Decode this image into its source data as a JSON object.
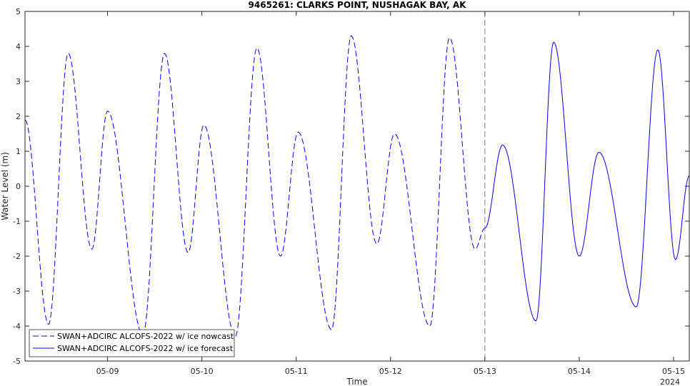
{
  "chart_data": {
    "type": "line",
    "title": "9465261: CLARKS POINT, NUSHAGAK BAY, AK",
    "xlabel": "Time",
    "ylabel": "Water Level (m)",
    "year_label": "2024",
    "ylim": [
      -5,
      5
    ],
    "yticks": [
      5,
      4,
      3,
      2,
      1,
      0,
      -1,
      -2,
      -3,
      -4,
      -5
    ],
    "ytick_labels": [
      "5",
      "4",
      "3",
      "2",
      "1",
      "0",
      "-1",
      "-2",
      "-3",
      "-4",
      "-5"
    ],
    "xlim": [
      "2024-05-08 03:00",
      "2024-05-15 04:00"
    ],
    "xticks": [
      "2024-05-09",
      "2024-05-10",
      "2024-05-11",
      "2024-05-12",
      "2024-05-13",
      "2024-05-14",
      "2024-05-15"
    ],
    "xtick_labels": [
      "05-09",
      "05-10",
      "05-11",
      "05-12",
      "05-13",
      "05-14",
      "05-15"
    ],
    "vline_x": "2024-05-13 00:00",
    "legend_position": "bottom-left",
    "grid": false,
    "colors": {
      "series": "#0000ff",
      "vline": "#808080",
      "axis": "#262626"
    },
    "series": [
      {
        "name": "SWAN+ADCIRC ALCOFS-2022 w/ ice nowcast",
        "style": "dashed",
        "points": [
          [
            "2024-05-08 03:00",
            1.9
          ],
          [
            "2024-05-08 09:00",
            -3.95
          ],
          [
            "2024-05-08 14:00",
            3.8
          ],
          [
            "2024-05-08 20:00",
            -1.8
          ],
          [
            "2024-05-09 00:00",
            2.15
          ],
          [
            "2024-05-09 09:00",
            -4.25
          ],
          [
            "2024-05-09 14:30",
            3.8
          ],
          [
            "2024-05-09 20:30",
            -1.9
          ],
          [
            "2024-05-10 00:30",
            1.75
          ],
          [
            "2024-05-10 08:30",
            -4.3
          ],
          [
            "2024-05-10 14:00",
            3.95
          ],
          [
            "2024-05-10 20:00",
            -2.0
          ],
          [
            "2024-05-11 00:30",
            1.55
          ],
          [
            "2024-05-11 09:00",
            -4.1
          ],
          [
            "2024-05-11 14:00",
            4.3
          ],
          [
            "2024-05-11 20:30",
            -1.65
          ],
          [
            "2024-05-12 01:00",
            1.5
          ],
          [
            "2024-05-12 10:00",
            -4.0
          ],
          [
            "2024-05-12 15:00",
            4.25
          ],
          [
            "2024-05-12 21:30",
            -1.8
          ],
          [
            "2024-05-13 00:00",
            -1.2
          ]
        ]
      },
      {
        "name": "SWAN+ADCIRC ALCOFS-2022 w/ ice forecast",
        "style": "solid",
        "points": [
          [
            "2024-05-13 00:00",
            -1.2
          ],
          [
            "2024-05-13 04:30",
            1.18
          ],
          [
            "2024-05-13 13:00",
            -3.85
          ],
          [
            "2024-05-13 17:30",
            4.12
          ],
          [
            "2024-05-14 00:00",
            -2.0
          ],
          [
            "2024-05-14 05:00",
            0.97
          ],
          [
            "2024-05-14 14:30",
            -3.45
          ],
          [
            "2024-05-14 20:00",
            3.9
          ],
          [
            "2024-05-15 00:30",
            -2.1
          ],
          [
            "2024-05-15 04:00",
            0.3
          ]
        ]
      }
    ]
  }
}
